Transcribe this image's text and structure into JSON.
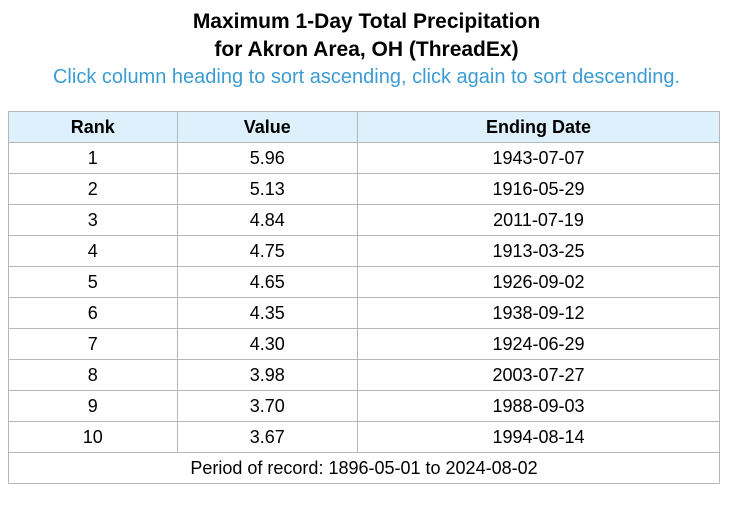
{
  "header": {
    "title_line1": "Maximum 1-Day Total Precipitation",
    "title_line2": "for Akron Area, OH (ThreadEx)",
    "instructions": "Click column heading to sort ascending, click again to sort descending."
  },
  "table": {
    "columns": [
      "Rank",
      "Value",
      "Ending Date"
    ],
    "rows": [
      {
        "rank": "1",
        "value": "5.96",
        "date": "1943-07-07"
      },
      {
        "rank": "2",
        "value": "5.13",
        "date": "1916-05-29"
      },
      {
        "rank": "3",
        "value": "4.84",
        "date": "2011-07-19"
      },
      {
        "rank": "4",
        "value": "4.75",
        "date": "1913-03-25"
      },
      {
        "rank": "5",
        "value": "4.65",
        "date": "1926-09-02"
      },
      {
        "rank": "6",
        "value": "4.35",
        "date": "1938-09-12"
      },
      {
        "rank": "7",
        "value": "4.30",
        "date": "1924-06-29"
      },
      {
        "rank": "8",
        "value": "3.98",
        "date": "2003-07-27"
      },
      {
        "rank": "9",
        "value": "3.70",
        "date": "1988-09-03"
      },
      {
        "rank": "10",
        "value": "3.67",
        "date": "1994-08-14"
      }
    ],
    "footer": "Period of record: 1896-05-01 to 2024-08-02"
  },
  "colors": {
    "header_bg": "#def0fb",
    "instructions_text": "#3c9cd2",
    "border": "#b7b7b7"
  }
}
